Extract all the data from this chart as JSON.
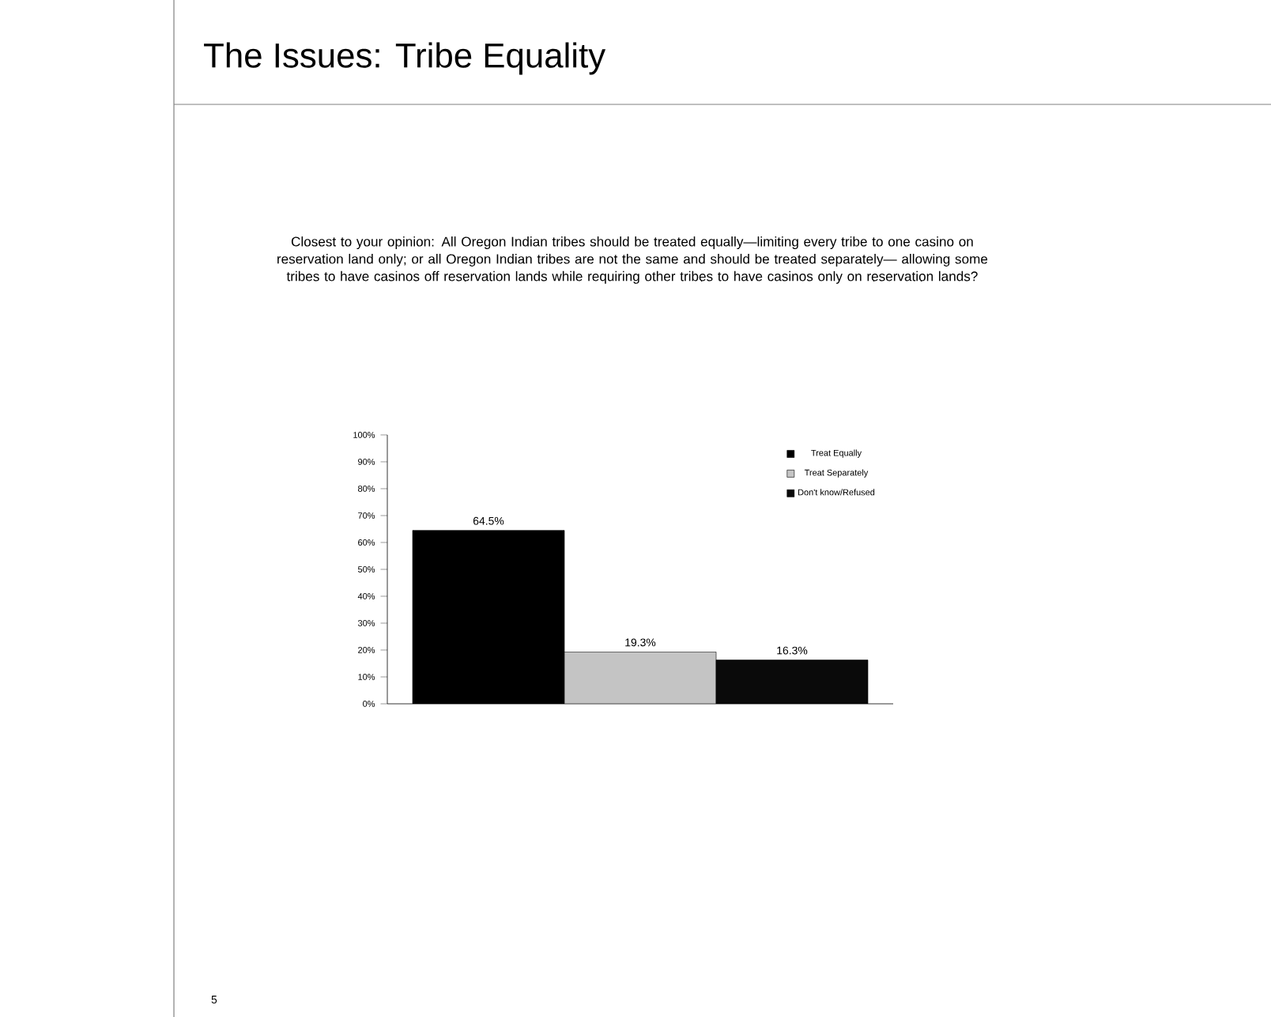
{
  "chart_data": {
    "type": "bar",
    "title": "The Issues: Tribe Equality",
    "subtitle": "Closest to your opinion: All Oregon Indian tribes should be treated equally—limiting every tribe to one casino on reservation land only; or all Oregon Indian tribes are not the same and should be treated separately— allowing some tribes to have casinos off reservation lands while requiring other tribes to have casinos only on reservation lands?",
    "categories": [
      null
    ],
    "series": [
      {
        "name": "Treat Equally",
        "color": "#000000",
        "values": [
          64.5
        ],
        "value_labels": [
          "64.5%"
        ]
      },
      {
        "name": "Treat Separately",
        "color": "#c4c4c4",
        "values": [
          19.3
        ],
        "value_labels": [
          "19.3%"
        ]
      },
      {
        "name": "Don't know/Refused",
        "color": "#0a0a0a",
        "values": [
          16.3
        ],
        "value_labels": [
          "16.3%"
        ]
      }
    ],
    "ylim": [
      0,
      100
    ],
    "yticks": [
      {
        "value": 0,
        "label": "0%"
      },
      {
        "value": 10,
        "label": "10%"
      },
      {
        "value": 20,
        "label": "20%"
      },
      {
        "value": 30,
        "label": "30%"
      },
      {
        "value": 40,
        "label": "40%"
      },
      {
        "value": 50,
        "label": "50%"
      },
      {
        "value": 60,
        "label": "60%"
      },
      {
        "value": 70,
        "label": "70%"
      },
      {
        "value": 80,
        "label": "80%"
      },
      {
        "value": 90,
        "label": "90%"
      },
      {
        "value": 100,
        "label": "100%"
      }
    ],
    "tick_labels": "y",
    "legend": "top right",
    "grid": false,
    "annotations": [
      "5"
    ]
  }
}
